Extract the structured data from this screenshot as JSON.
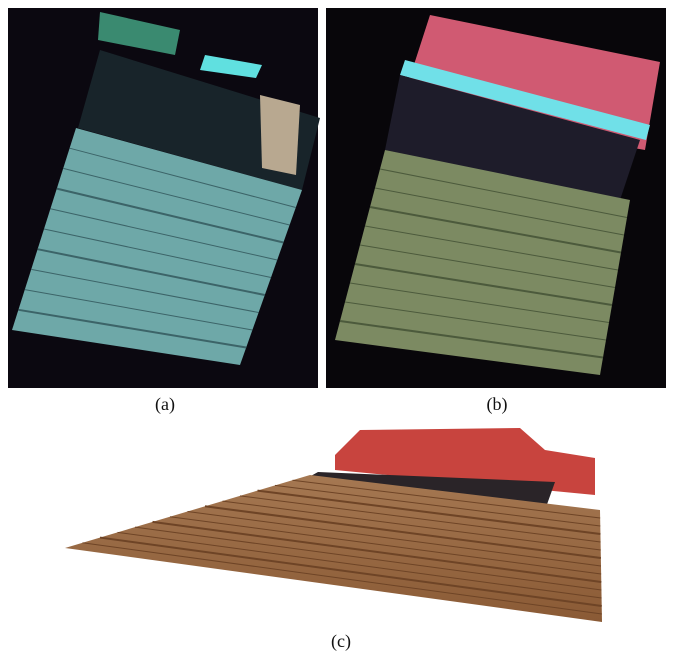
{
  "figure": {
    "captions": [
      "(a)",
      "(b)",
      "(c)"
    ]
  }
}
